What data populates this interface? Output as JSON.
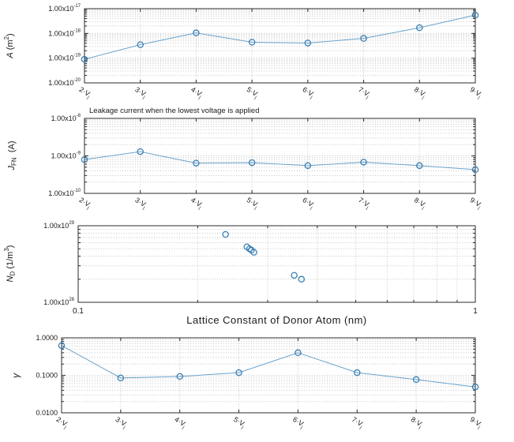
{
  "figure": {
    "background": "#ffffff"
  },
  "colors": {
    "line": "#6aa3cc",
    "marker": "#3a80b4",
    "grid": "#c3c3c3",
    "axis": "#2b2b2b",
    "text": "#1a1a1a"
  },
  "chart_data": [
    {
      "id": "a",
      "type": "line",
      "title": "",
      "ylabel_segments": [
        {
          "t": "A",
          "s": "i"
        },
        {
          "t": " (m",
          "s": "n"
        },
        {
          "t": "2",
          "s": "sup"
        },
        {
          "t": ")",
          "s": "n"
        }
      ],
      "x_type": "category",
      "categories": [
        "2·V_j",
        "3·V_j",
        "4·V_j",
        "5·V_j",
        "6·V_j",
        "7·V_j",
        "8·V_j",
        "9·V_j"
      ],
      "values": [
        9e-20,
        3.5e-19,
        1.05e-18,
        4.4e-19,
        4.1e-19,
        6.3e-19,
        1.7e-18,
        5.5e-18
      ],
      "ylim": [
        1e-20,
        1e-17
      ],
      "y_ticks": [
        {
          "label": "1.00x10^-17",
          "value": 1e-17
        },
        {
          "label": "1.00x10^-18",
          "value": 1e-18
        },
        {
          "label": "1.00x10^-19",
          "value": 1e-19
        },
        {
          "label": "1.00x10^-20",
          "value": 1e-20
        }
      ],
      "grid": true,
      "legend": "none"
    },
    {
      "id": "jfn",
      "type": "line",
      "title": "Leakage current when the lowest voltage is applied",
      "ylabel_segments": [
        {
          "t": "J",
          "s": "i"
        },
        {
          "t": "FN",
          "s": "sub"
        },
        {
          "t": "  (A)",
          "s": "n"
        }
      ],
      "x_type": "category",
      "categories": [
        "2·V_j",
        "3·V_j",
        "4·V_j",
        "5·V_j",
        "6·V_j",
        "7·V_j",
        "8·V_j",
        "9·V_j"
      ],
      "values": [
        8e-10,
        1.3e-09,
        6.4e-10,
        6.6e-10,
        5.5e-10,
        6.8e-10,
        5.5e-10,
        4.3e-10
      ],
      "ylim": [
        1e-10,
        1e-08
      ],
      "y_ticks": [
        {
          "label": "1.00x10^-8",
          "value": 1e-08
        },
        {
          "label": "1.00x10^-9",
          "value": 1e-09
        },
        {
          "label": "1.00x10^-10",
          "value": 1e-10
        }
      ],
      "grid": true,
      "legend": "none"
    },
    {
      "id": "nd",
      "type": "scatter",
      "title": "",
      "ylabel_segments": [
        {
          "t": "N",
          "s": "i"
        },
        {
          "t": "D",
          "s": "sub"
        },
        {
          "t": " (1/m",
          "s": "n"
        },
        {
          "t": "3",
          "s": "sup"
        },
        {
          "t": ")",
          "s": "n"
        }
      ],
      "x_type": "log",
      "xlabel": "Lattice Constant of Donor Atom  (nm)",
      "xlim": [
        0.1,
        1
      ],
      "x_tick_labels": [
        {
          "label": "0.1",
          "value": 0.1
        },
        {
          "label": "1",
          "value": 1
        }
      ],
      "points": [
        [
          0.235,
          7.7e+28
        ],
        [
          0.266,
          5.3e+28
        ],
        [
          0.27,
          5e+28
        ],
        [
          0.273,
          4.8e+28
        ],
        [
          0.277,
          4.5e+28
        ],
        [
          0.35,
          2.25e+28
        ],
        [
          0.365,
          2e+28
        ]
      ],
      "ylim": [
        1e+28,
        1e+29
      ],
      "y_ticks": [
        {
          "label": "1.00x10^29",
          "value": 1e+29
        },
        {
          "label": "1.00x10^28",
          "value": 1e+28
        }
      ],
      "grid": true,
      "legend": "none"
    },
    {
      "id": "gamma",
      "type": "line",
      "title": "",
      "ylabel_segments": [
        {
          "t": "γ",
          "s": "i"
        }
      ],
      "x_type": "category",
      "categories": [
        "2·V_j",
        "3·V_j",
        "4·V_j",
        "5·V_j",
        "6·V_j",
        "7·V_j",
        "8·V_j",
        "9·V_j"
      ],
      "values": [
        0.62,
        0.085,
        0.093,
        0.118,
        0.4,
        0.118,
        0.077,
        0.049
      ],
      "ylim": [
        0.01,
        1
      ],
      "y_ticks": [
        {
          "label": "1.0000",
          "value": 1
        },
        {
          "label": "0.1000",
          "value": 0.1
        },
        {
          "label": "0.0100",
          "value": 0.01
        }
      ],
      "grid": true,
      "legend": "none"
    }
  ]
}
